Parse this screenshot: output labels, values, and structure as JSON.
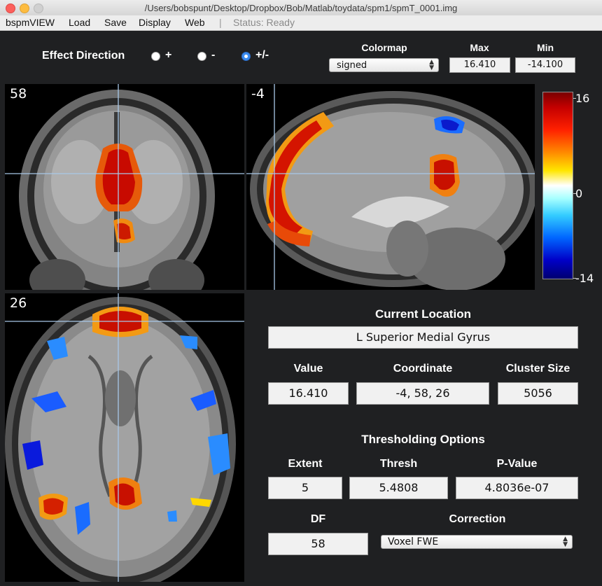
{
  "window": {
    "title": "/Users/bobspunt/Desktop/Dropbox/Bob/Matlab/toydata/spm1/spmT_0001.img"
  },
  "menu": {
    "items": [
      "bspmVIEW",
      "Load",
      "Save",
      "Display",
      "Web"
    ],
    "separator": "|",
    "status": "Status: Ready"
  },
  "effect_direction": {
    "label": "Effect Direction",
    "options": [
      {
        "label": "+",
        "selected": false
      },
      {
        "label": "-",
        "selected": false
      },
      {
        "label": "+/-",
        "selected": true
      }
    ]
  },
  "colormap": {
    "label": "Colormap",
    "value": "signed"
  },
  "max": {
    "label": "Max",
    "value": "16.410"
  },
  "min": {
    "label": "Min",
    "value": "-14.100"
  },
  "views": {
    "coronal": {
      "slice": "58"
    },
    "sagittal": {
      "slice": "-4"
    },
    "axial": {
      "slice": "26"
    }
  },
  "colorbar": {
    "top": "16",
    "mid": "0",
    "bottom": "-14"
  },
  "location": {
    "title": "Current Location",
    "region": "L Superior Medial Gyrus"
  },
  "readout": {
    "value_label": "Value",
    "value": "16.410",
    "coord_label": "Coordinate",
    "coord": "-4, 58, 26",
    "cluster_label": "Cluster Size",
    "cluster": "5056"
  },
  "thresholding": {
    "title": "Thresholding Options",
    "extent_label": "Extent",
    "extent": "5",
    "thresh_label": "Thresh",
    "thresh": "5.4808",
    "pvalue_label": "P-Value",
    "pvalue": "4.8036e-07",
    "df_label": "DF",
    "df": "58",
    "correction_label": "Correction",
    "correction": "Voxel FWE"
  },
  "colors": {
    "background": "#1f2022",
    "crosshair": "#a8c8e8",
    "radio_selected": "#3b8cf0"
  }
}
